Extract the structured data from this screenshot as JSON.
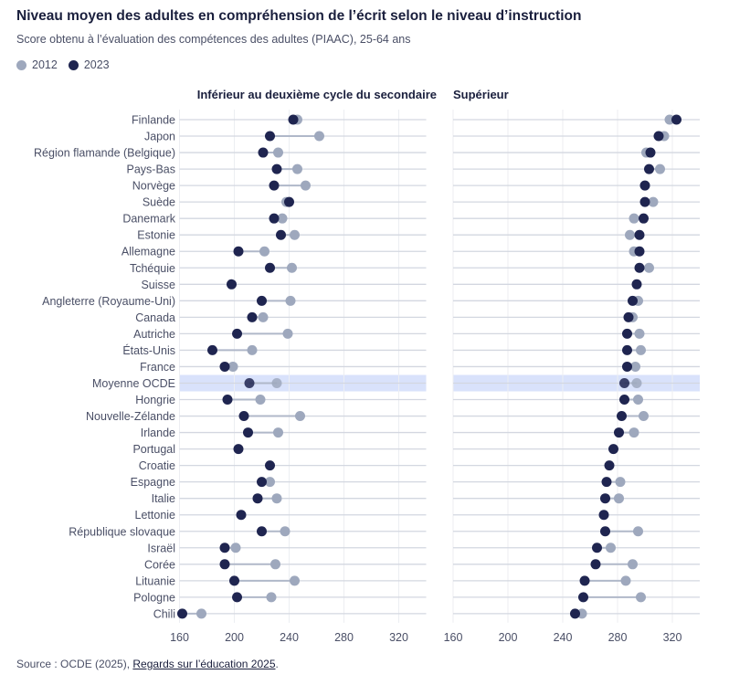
{
  "title": "Niveau moyen des adultes en compréhension de l’écrit selon le niveau d’instruction",
  "subtitle": "Score obtenu à l’évaluation des compétences des adultes (PIAAC), 25-64 ans",
  "source": {
    "prefix": "Source : OCDE (2025), ",
    "link": "Regards sur l’éducation 2025",
    "suffix": "."
  },
  "colors": {
    "y2012": "#9ea8bd",
    "y2023": "#1f2550",
    "highlight": "#d9e2fb",
    "connector": "#b0b8c9"
  },
  "chart_data": {
    "type": "dot-plot",
    "legend": {
      "placement": "top-left",
      "entries": [
        "2012",
        "2023"
      ]
    },
    "xlim": [
      160,
      340
    ],
    "ticks": [
      160,
      200,
      240,
      280,
      320
    ],
    "grid": true,
    "highlighted_category": "Moyenne OCDE",
    "categories": [
      "Finlande",
      "Japon",
      "Région flamande (Belgique)",
      "Pays-Bas",
      "Norvège",
      "Suède",
      "Danemark",
      "Estonie",
      "Allemagne",
      "Tchéquie",
      "Suisse",
      "Angleterre (Royaume-Uni)",
      "Canada",
      "Autriche",
      "États-Unis",
      "France",
      "Moyenne OCDE",
      "Hongrie",
      "Nouvelle-Zélande",
      "Irlande",
      "Portugal",
      "Croatie",
      "Espagne",
      "Italie",
      "Lettonie",
      "République slovaque",
      "Israël",
      "Corée",
      "Lituanie",
      "Pologne",
      "Chili"
    ],
    "panels": [
      {
        "title": "Inférieur au deuxième cycle du secondaire",
        "series": [
          {
            "name": "2012",
            "values": [
              246,
              262,
              232,
              246,
              252,
              238,
              235,
              244,
              222,
              242,
              null,
              241,
              221,
              239,
              213,
              199,
              231,
              219,
              248,
              232,
              null,
              null,
              226,
              231,
              null,
              237,
              201,
              230,
              244,
              227,
              176
            ]
          },
          {
            "name": "2023",
            "values": [
              243,
              226,
              221,
              231,
              229,
              240,
              229,
              234,
              203,
              226,
              198,
              220,
              213,
              202,
              184,
              193,
              211,
              195,
              207,
              210,
              203,
              226,
              220,
              217,
              205,
              220,
              193,
              193,
              200,
              202,
              162
            ]
          }
        ]
      },
      {
        "title": "Supérieur",
        "series": [
          {
            "name": "2012",
            "values": [
              318,
              314,
              301,
              311,
              300,
              306,
              292,
              289,
              292,
              303,
              null,
              295,
              291,
              296,
              297,
              293,
              294,
              295,
              299,
              292,
              null,
              null,
              282,
              281,
              null,
              295,
              275,
              291,
              286,
              297,
              254
            ]
          },
          {
            "name": "2023",
            "values": [
              323,
              310,
              304,
              303,
              300,
              300,
              299,
              296,
              296,
              296,
              294,
              291,
              288,
              287,
              287,
              287,
              285,
              285,
              283,
              281,
              277,
              274,
              272,
              271,
              270,
              271,
              265,
              264,
              256,
              255,
              249
            ]
          }
        ]
      }
    ]
  }
}
